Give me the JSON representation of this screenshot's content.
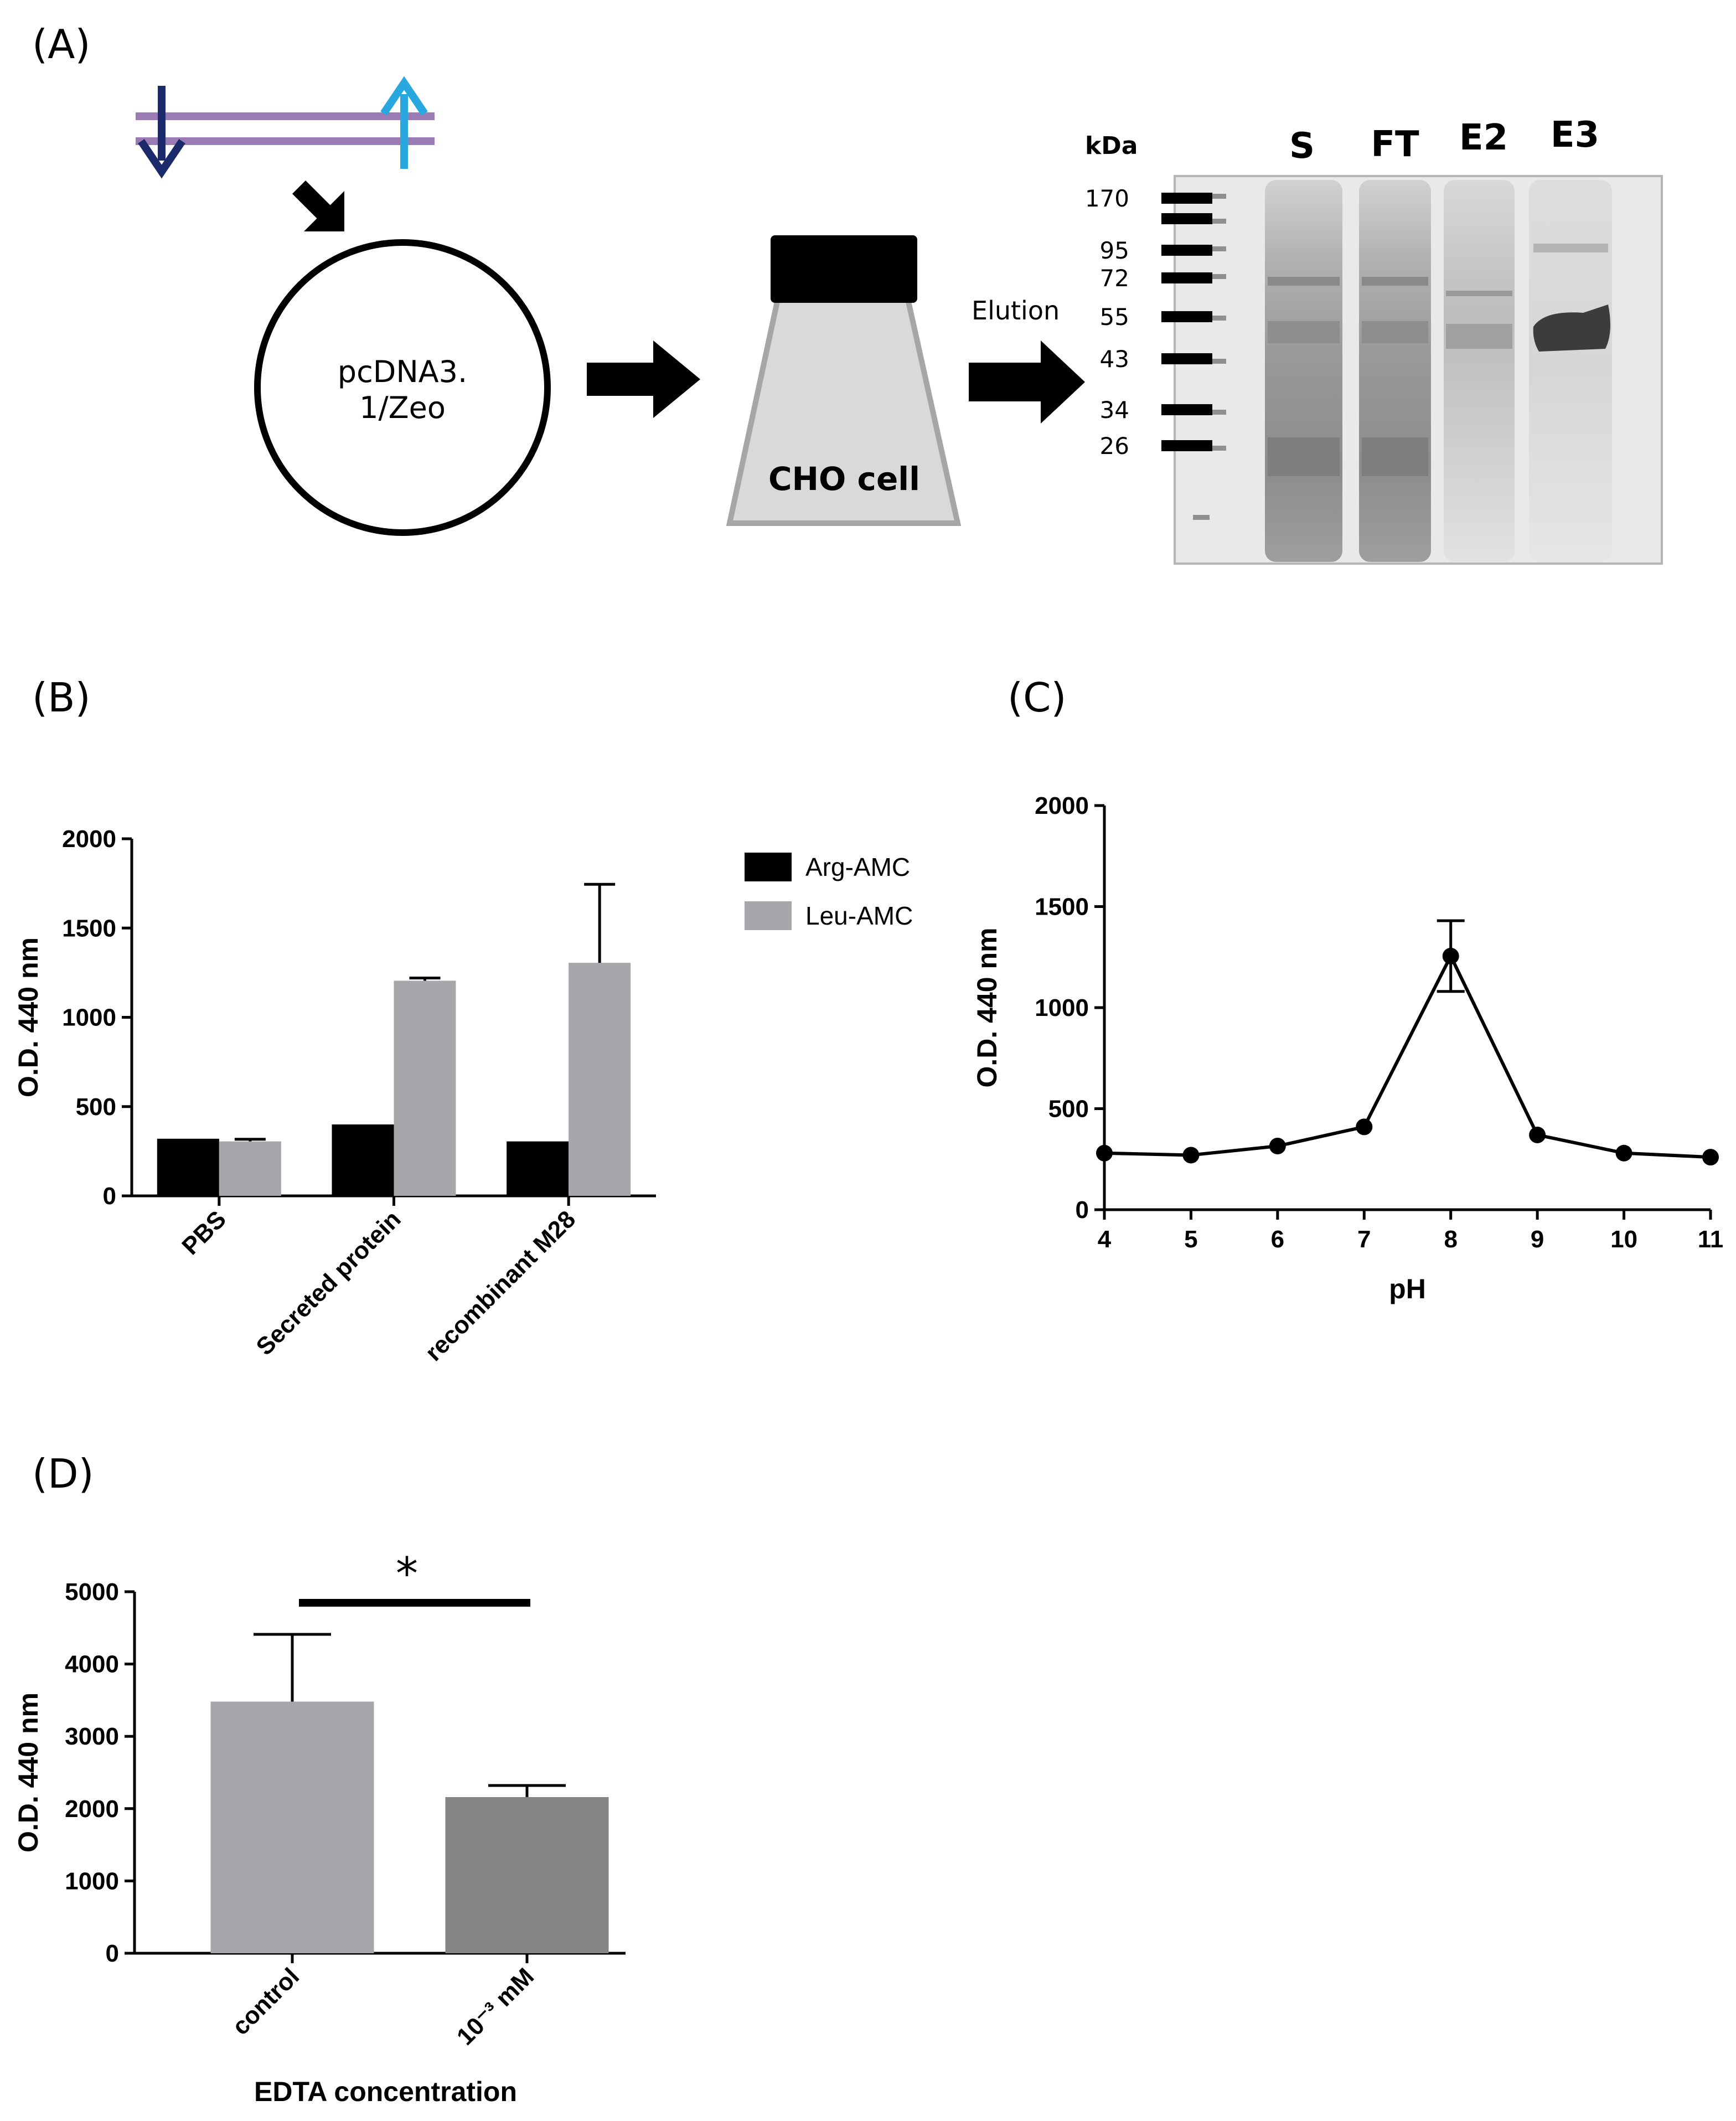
{
  "panels": {
    "a": "(A)",
    "b": "(B)",
    "c": "(C)",
    "d": "(D)"
  },
  "diagram": {
    "plasmid_label_line1": "pcDNA3.",
    "plasmid_label_line2": "1/Zeo",
    "flask_label": "CHO cell",
    "elution_label": "Elution",
    "colors": {
      "dna_strand": "#9b7bb3",
      "arrow_dark": "#1b2a6b",
      "arrow_light": "#29a8e0",
      "flask_fill": "#d9d9d9",
      "flask_stroke": "#a6a6a6"
    }
  },
  "gel": {
    "unit_label": "kDa",
    "markers": [
      "170",
      "95",
      "72",
      "55",
      "43",
      "34",
      "26"
    ],
    "lanes": [
      "S",
      "FT",
      "E2",
      "E3"
    ]
  },
  "chart_data": [
    {
      "id": "B",
      "type": "bar",
      "ylabel": "O.D. 440 nm",
      "ylim": [
        0,
        2000
      ],
      "yticks": [
        0,
        500,
        1000,
        1500,
        2000
      ],
      "categories": [
        "PBS",
        "Secreted protein",
        "recombinant M28"
      ],
      "series": [
        {
          "name": "Arg-AMC",
          "values": [
            320,
            400,
            305
          ],
          "errors": [
            0,
            0,
            0
          ],
          "color": "#000000"
        },
        {
          "name": "Leu-AMC",
          "values": [
            305,
            1205,
            1305
          ],
          "errors": [
            12,
            15,
            440
          ],
          "color": "#a6a6ab"
        }
      ],
      "legend_position": "right"
    },
    {
      "id": "C",
      "type": "line",
      "xlabel": "pH",
      "ylabel": "O.D. 440 nm",
      "xlim": [
        4,
        11
      ],
      "ylim": [
        0,
        2000
      ],
      "xticks": [
        4,
        5,
        6,
        7,
        8,
        9,
        10,
        11
      ],
      "yticks": [
        0,
        500,
        1000,
        1500,
        2000
      ],
      "x": [
        4,
        5,
        6,
        7,
        8,
        9,
        10,
        11
      ],
      "y": [
        280,
        270,
        315,
        410,
        1255,
        370,
        280,
        260
      ],
      "errors": [
        0,
        0,
        0,
        0,
        175,
        0,
        0,
        0
      ]
    },
    {
      "id": "D",
      "type": "bar",
      "xlabel": "EDTA concentration",
      "ylabel": "O.D. 440 nm",
      "ylim": [
        0,
        5000
      ],
      "yticks": [
        0,
        1000,
        2000,
        3000,
        4000,
        5000
      ],
      "categories": [
        "control",
        "10⁻³ mM"
      ],
      "values": [
        3480,
        2160
      ],
      "errors": [
        930,
        160
      ],
      "colors": [
        "#a6a6ab",
        "#858585"
      ],
      "significance": "*"
    }
  ]
}
